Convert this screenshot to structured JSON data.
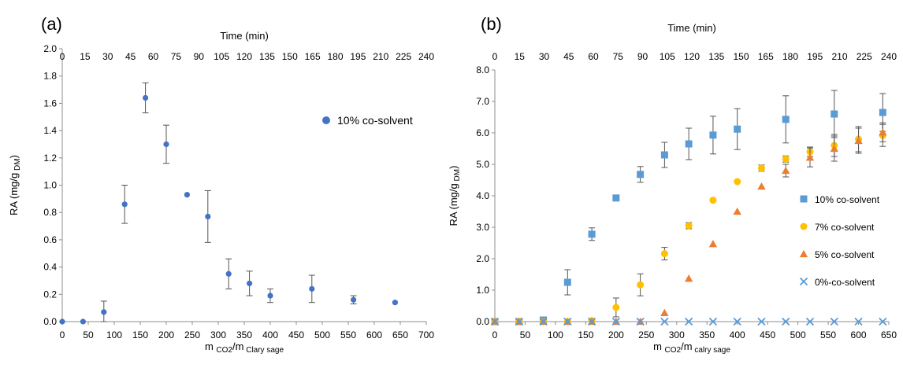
{
  "chart_data": [
    {
      "panel_label": "(a)",
      "type": "scatter",
      "top_axis_label": "Time (min)",
      "top_ticks": [
        "0",
        "15",
        "30",
        "45",
        "60",
        "75",
        "90",
        "105",
        "120",
        "135",
        "150",
        "165",
        "180",
        "195",
        "210",
        "225",
        "240"
      ],
      "xlabel_main": "m",
      "xlabel_sub1": "CO2",
      "xlabel_mid": "/m",
      "xlabel_sub2": "Clary sage",
      "ylabel_main": "RA (mg/g",
      "ylabel_sub": "DM",
      "ylabel_end": ")",
      "xlim": [
        0,
        700
      ],
      "ylim": [
        0,
        2.0
      ],
      "x_ticks": [
        0,
        50,
        100,
        150,
        200,
        250,
        300,
        350,
        400,
        450,
        500,
        550,
        600,
        650,
        700
      ],
      "y_ticks": [
        "0.0",
        "0.2",
        "0.4",
        "0.6",
        "0.8",
        "1.0",
        "1.2",
        "1.4",
        "1.6",
        "1.8",
        "2.0"
      ],
      "grid": false,
      "legend_position": "top-right",
      "series": [
        {
          "name": "10% co-solvent",
          "marker": "circle",
          "color": "#4472C4",
          "x": [
            0,
            40,
            80,
            120,
            160,
            200,
            240,
            280,
            320,
            360,
            400,
            480,
            560,
            640
          ],
          "y": [
            0,
            0,
            0.07,
            0.86,
            1.64,
            1.3,
            0.93,
            0.77,
            0.35,
            0.28,
            0.19,
            0.24,
            0.16,
            0.14
          ],
          "err": [
            0,
            0,
            0.08,
            0.14,
            0.11,
            0.14,
            0,
            0.19,
            0.11,
            0.09,
            0.05,
            0.1,
            0.03,
            0
          ]
        }
      ]
    },
    {
      "panel_label": "(b)",
      "type": "scatter",
      "top_axis_label": "Time (min)",
      "top_ticks": [
        "0",
        "15",
        "30",
        "45",
        "60",
        "75",
        "90",
        "105",
        "120",
        "135",
        "150",
        "165",
        "180",
        "195",
        "210",
        "225",
        "240"
      ],
      "xlabel_main": "m",
      "xlabel_sub1": "CO2",
      "xlabel_mid": "/m",
      "xlabel_sub2": "calry sage",
      "ylabel_main": "RA (mg/g",
      "ylabel_sub": "DM",
      "ylabel_end": ")",
      "xlim": [
        0,
        650
      ],
      "ylim": [
        0,
        8.0
      ],
      "x_ticks": [
        0,
        50,
        100,
        150,
        200,
        250,
        300,
        350,
        400,
        450,
        500,
        550,
        600,
        650
      ],
      "y_ticks": [
        "0.0",
        "1.0",
        "2.0",
        "3.0",
        "4.0",
        "5.0",
        "6.0",
        "7.0",
        "8.0"
      ],
      "grid": false,
      "legend_position": "right",
      "series": [
        {
          "name": "10% co-solvent",
          "marker": "square",
          "color": "#5B9BD5",
          "x": [
            0,
            40,
            80,
            120,
            160,
            200,
            240,
            280,
            320,
            360,
            400,
            480,
            560,
            640
          ],
          "y": [
            0,
            0,
            0.05,
            1.25,
            2.78,
            3.93,
            4.68,
            5.3,
            5.65,
            5.93,
            6.12,
            6.43,
            6.6,
            6.65
          ],
          "err": [
            0,
            0,
            0,
            0.4,
            0.2,
            0,
            0.25,
            0.4,
            0.5,
            0.6,
            0.65,
            0.75,
            0.75,
            0.6
          ]
        },
        {
          "name": "7% co-solvent",
          "marker": "circle",
          "color": "#FFC000",
          "x": [
            0,
            40,
            80,
            120,
            160,
            200,
            240,
            280,
            320,
            360,
            400,
            440,
            480,
            520,
            560,
            600,
            640
          ],
          "y": [
            0,
            0,
            0,
            0,
            0.03,
            0.45,
            1.17,
            2.16,
            3.05,
            3.86,
            4.45,
            4.88,
            5.17,
            5.4,
            5.6,
            5.8,
            5.92
          ],
          "err": [
            0,
            0,
            0,
            0,
            0,
            0.3,
            0.35,
            0.2,
            0.1,
            0,
            0,
            0.1,
            0.1,
            0.15,
            0.35,
            0.4,
            0.35
          ]
        },
        {
          "name": "5% co-solvent",
          "marker": "triangle",
          "color": "#ED7D31",
          "x": [
            0,
            40,
            80,
            120,
            160,
            200,
            240,
            280,
            320,
            360,
            400,
            440,
            480,
            520,
            560,
            600,
            640
          ],
          "y": [
            0,
            0,
            0,
            0,
            0,
            0,
            0,
            0.28,
            1.37,
            2.47,
            3.5,
            4.3,
            4.8,
            5.22,
            5.5,
            5.75,
            6.02
          ],
          "err": [
            0,
            0,
            0,
            0,
            0,
            0,
            0,
            0,
            0,
            0,
            0,
            0,
            0.2,
            0.3,
            0.4,
            0.4,
            0.3
          ]
        },
        {
          "name": "0%-co-solvent",
          "marker": "x",
          "color": "#5B9BD5",
          "x": [
            0,
            40,
            80,
            120,
            160,
            200,
            240,
            280,
            320,
            360,
            400,
            440,
            480,
            520,
            560,
            600,
            640
          ],
          "y": [
            0,
            0,
            0,
            0,
            0,
            0,
            0,
            0,
            0,
            0,
            0,
            0,
            0,
            0,
            0,
            0,
            0
          ],
          "err": [
            0,
            0,
            0,
            0,
            0,
            0,
            0,
            0,
            0,
            0,
            0,
            0,
            0,
            0,
            0,
            0,
            0
          ]
        }
      ]
    }
  ]
}
